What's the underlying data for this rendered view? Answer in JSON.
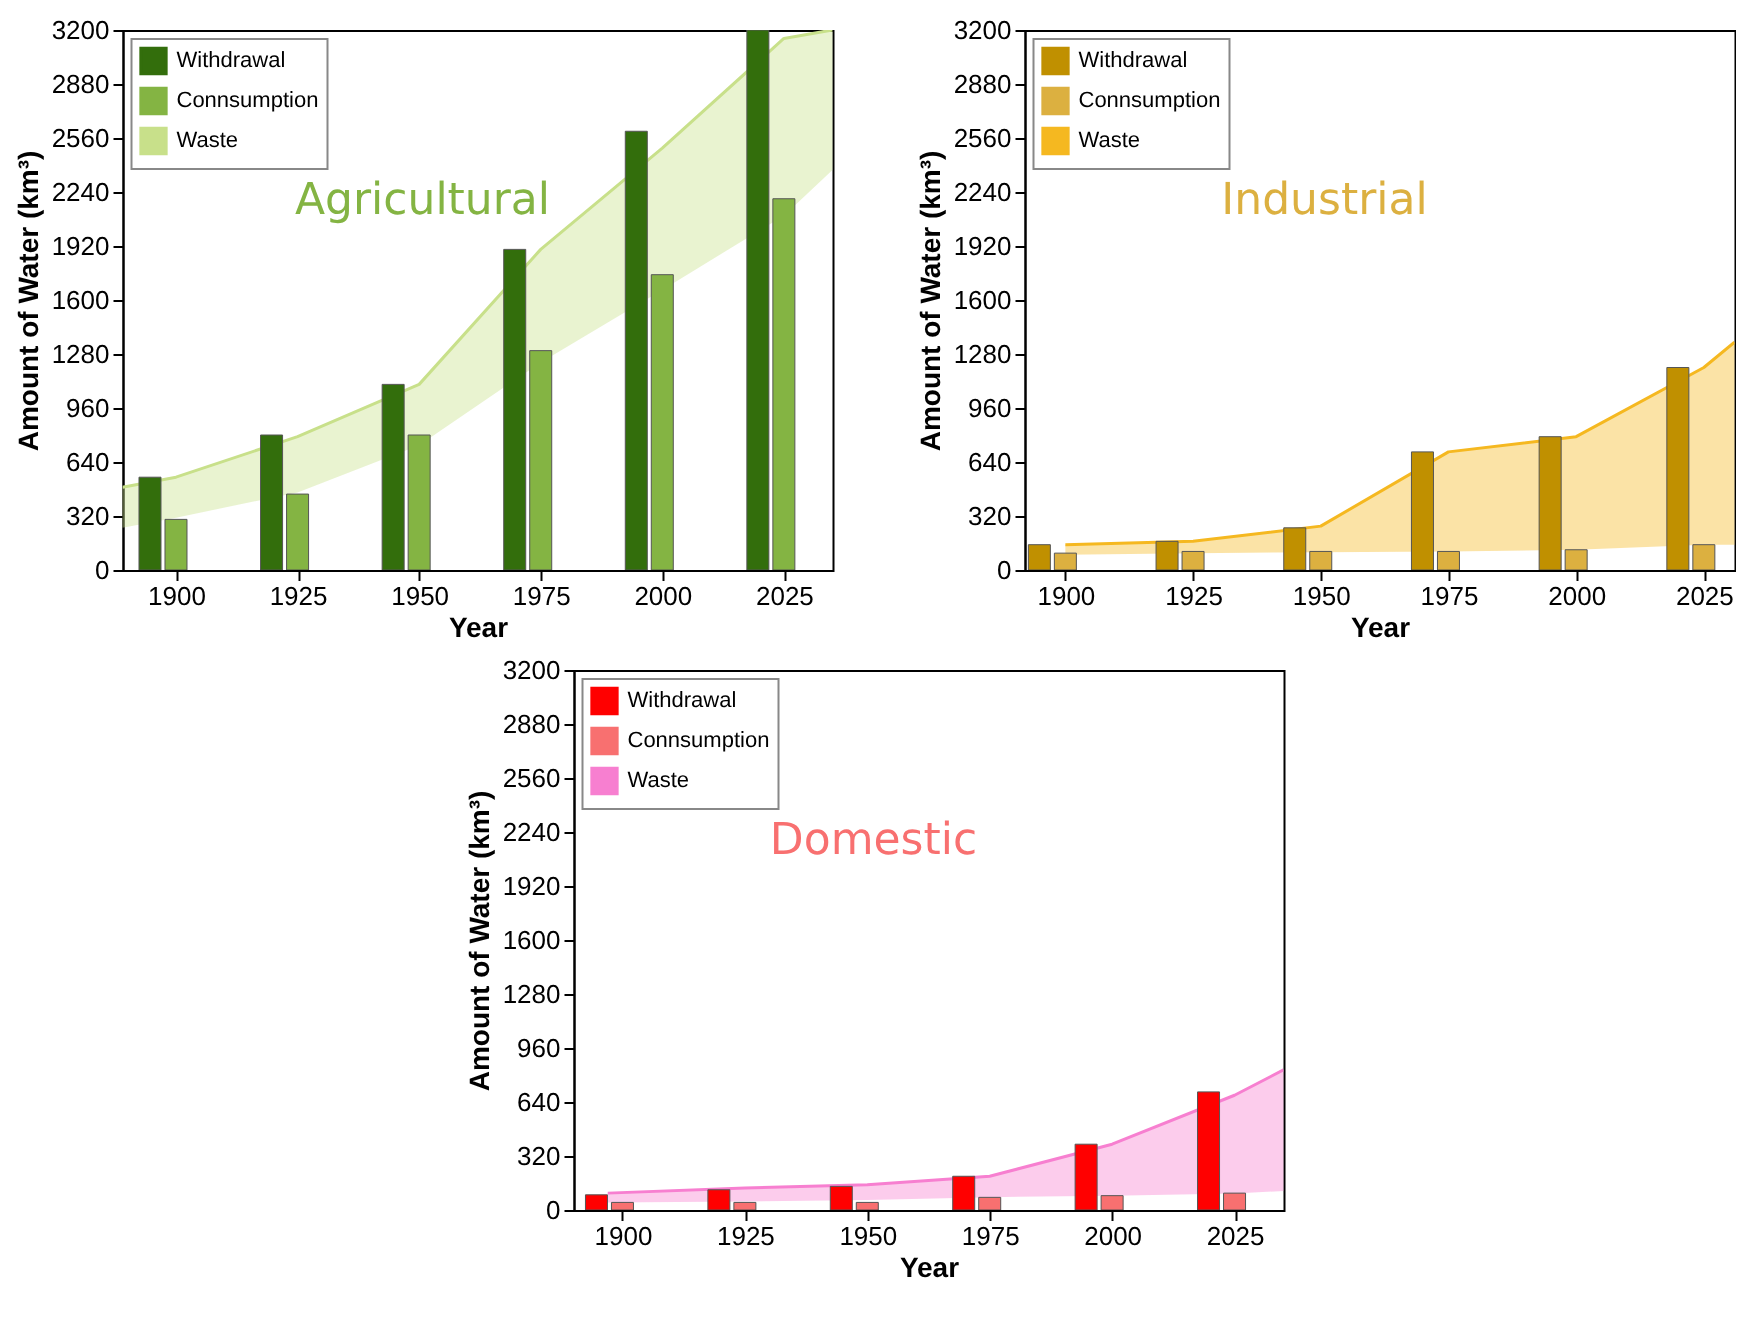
{
  "chart_data": [
    {
      "type": "bar",
      "annotations": [
        "Agricultural"
      ],
      "xlabel": "Year",
      "ylabel": "Amount of Water (km³)",
      "x": [
        1900,
        1925,
        1950,
        1975,
        2000,
        2025
      ],
      "xlim": [
        1889,
        2035
      ],
      "xticks": [
        1900,
        1925,
        1950,
        1975,
        2000,
        2025
      ],
      "ylim": [
        0,
        3200
      ],
      "yticks": [
        0,
        320,
        640,
        960,
        1280,
        1600,
        1920,
        2240,
        2560,
        2880,
        3200
      ],
      "legend": "top left",
      "series": [
        {
          "name": "Withdrawal",
          "color": "#336e0c",
          "values": [
            550,
            800,
            1100,
            1900,
            2600,
            3200
          ]
        },
        {
          "name": "Connsumption",
          "color": "#84b443",
          "values": [
            300,
            450,
            800,
            1300,
            1750,
            2200
          ]
        },
        {
          "name": "Waste",
          "type": "line",
          "color": "#c8e08a",
          "x": [
            1889,
            1900,
            1925,
            1950,
            1975,
            2000,
            2025,
            2035
          ],
          "values": [
            490,
            550,
            790,
            1100,
            1900,
            2500,
            3150,
            3200
          ],
          "lower": [
            250,
            310,
            460,
            740,
            1230,
            1660,
            2100,
            2370
          ],
          "upper": [
            490,
            550,
            790,
            1100,
            1900,
            2500,
            3150,
            3200
          ]
        }
      ]
    },
    {
      "type": "bar",
      "annotations": [
        "Industrial"
      ],
      "xlabel": "Year",
      "ylabel": "Amount of Water (km³)",
      "x": [
        1900,
        1925,
        1950,
        1975,
        2000,
        2025
      ],
      "xlim": [
        1892,
        2031
      ],
      "xticks": [
        1900,
        1925,
        1950,
        1975,
        2000,
        2025
      ],
      "ylim": [
        0,
        3200
      ],
      "yticks": [
        0,
        320,
        640,
        960,
        1280,
        1600,
        1920,
        2240,
        2560,
        2880,
        3200
      ],
      "legend": "top left",
      "series": [
        {
          "name": "Withdrawal",
          "color": "#c09000",
          "values": [
            150,
            170,
            250,
            700,
            790,
            1200
          ]
        },
        {
          "name": "Connsumption",
          "color": "#dcb040",
          "values": [
            100,
            110,
            110,
            110,
            120,
            150
          ]
        },
        {
          "name": "Waste",
          "type": "line",
          "color": "#f5b820",
          "x": [
            1900,
            1925,
            1950,
            1975,
            2000,
            2025,
            2031
          ],
          "values": [
            150,
            170,
            260,
            700,
            790,
            1200,
            1350
          ],
          "lower": [
            90,
            100,
            105,
            110,
            120,
            150,
            150
          ],
          "upper": [
            150,
            170,
            260,
            700,
            790,
            1200,
            1350
          ]
        }
      ]
    },
    {
      "type": "bar",
      "annotations": [
        "Domestic"
      ],
      "xlabel": "Year",
      "ylabel": "Amount of Water (km³)",
      "x": [
        1900,
        1925,
        1950,
        1975,
        2000,
        2025
      ],
      "xlim": [
        1890,
        2035
      ],
      "xticks": [
        1900,
        1925,
        1950,
        1975,
        2000,
        2025
      ],
      "ylim": [
        0,
        3200
      ],
      "yticks": [
        0,
        320,
        640,
        960,
        1280,
        1600,
        1920,
        2240,
        2560,
        2880,
        3200
      ],
      "legend": "top left",
      "series": [
        {
          "name": "Withdrawal",
          "color": "#ff0000",
          "values": [
            90,
            120,
            140,
            200,
            390,
            700
          ]
        },
        {
          "name": "Connsumption",
          "color": "#f87070",
          "values": [
            45,
            45,
            45,
            75,
            85,
            100
          ]
        },
        {
          "name": "Waste",
          "type": "line",
          "color": "#f77fd0",
          "x": [
            1897,
            1925,
            1950,
            1975,
            2000,
            2025,
            2035
          ],
          "values": [
            100,
            130,
            150,
            200,
            390,
            680,
            830
          ],
          "lower": [
            45,
            50,
            60,
            76,
            85,
            98,
            113
          ],
          "upper": [
            100,
            130,
            150,
            200,
            390,
            680,
            830
          ]
        }
      ]
    }
  ]
}
